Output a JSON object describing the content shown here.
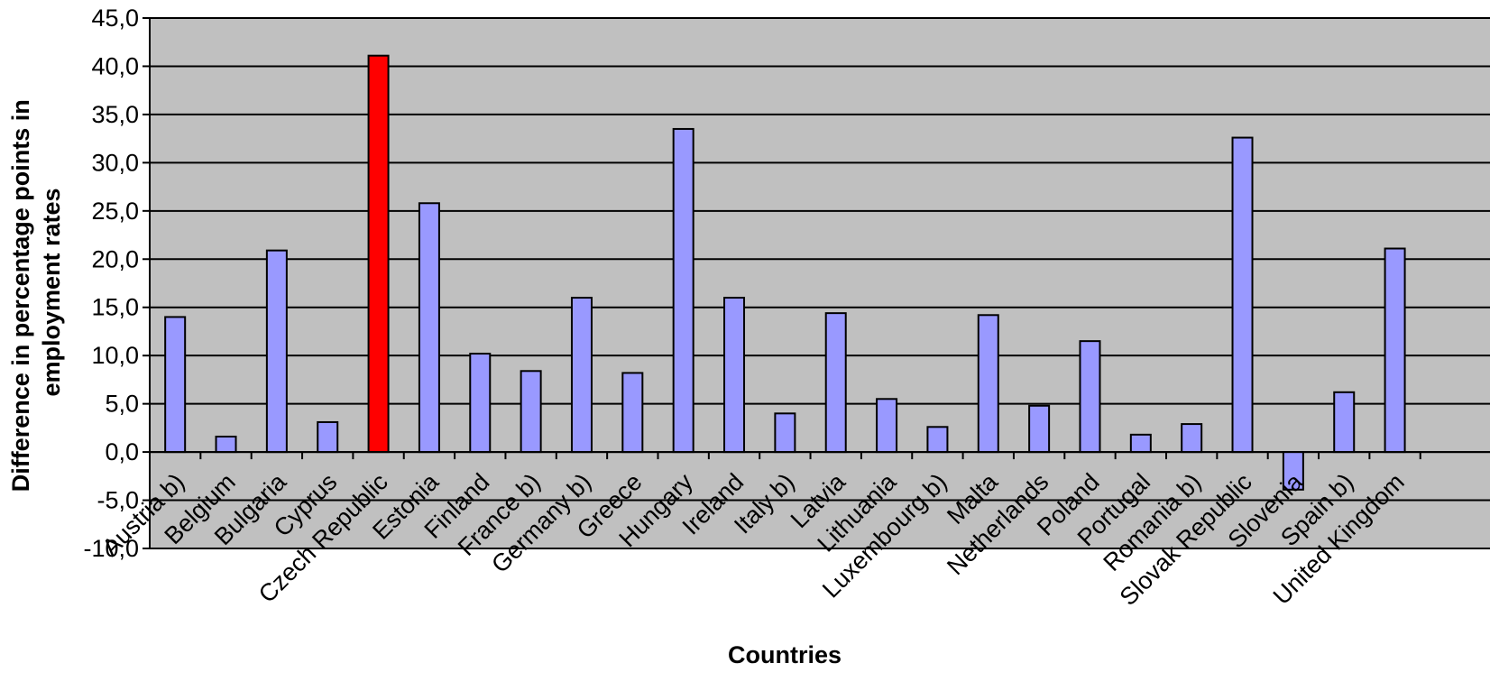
{
  "chart_data": {
    "type": "bar",
    "xlabel": "Countries",
    "ylabel": "Difference in percentage points in employment rates",
    "ylabel_lines": [
      "Difference in percentage points in",
      "employment rates"
    ],
    "ylim": [
      -10,
      45
    ],
    "ytick_labels": [
      "45,0",
      "40,0",
      "35,0",
      "30,0",
      "25,0",
      "20,0",
      "15,0",
      "10,0",
      "5,0",
      "0,0",
      "-5,0",
      "-10,0"
    ],
    "grid": true,
    "plot_background": "#c0c0c0",
    "bar_color": "#9999ff",
    "highlight_color": "#ff0000",
    "highlight_index": 4,
    "categories": [
      "Austria b)",
      "Belgium",
      "Bulgaria",
      "Cyprus",
      "Czech Republic",
      "Estonia",
      "Finland",
      "France b)",
      "Germany b)",
      "Greece",
      "Hungary",
      "Ireland",
      "Italy b)",
      "Latvia",
      "Lithuania",
      "Luxembourg b)",
      "Malta",
      "Netherlands",
      "Poland",
      "Portugal",
      "Romania b)",
      "Slovak Republic",
      "Slovenia",
      "Spain b)",
      "United Kingdom"
    ],
    "values": [
      14.0,
      1.6,
      20.9,
      3.1,
      41.1,
      25.8,
      10.2,
      8.4,
      16.0,
      8.2,
      33.5,
      16.0,
      4.0,
      14.4,
      5.5,
      2.6,
      14.2,
      4.8,
      11.5,
      1.8,
      2.9,
      32.6,
      -3.9,
      6.2,
      21.1
    ]
  }
}
